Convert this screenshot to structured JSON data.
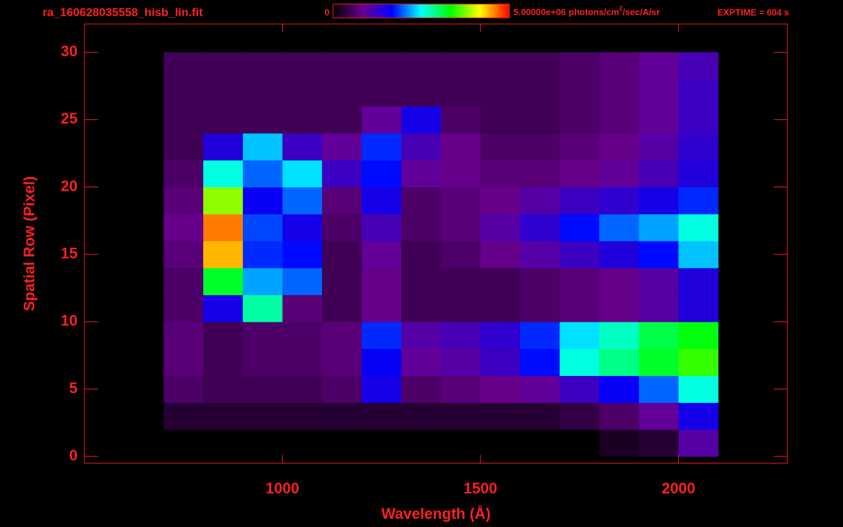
{
  "chart_data": {
    "type": "heatmap",
    "title": "ra_160628035558_hisb_lin.fit",
    "x_label": "Wavelength (Å)",
    "y_label": "Spatial Row (Pixel)",
    "annotation": "EXPTIME = 604 s",
    "colorbar": {
      "clim": [
        0,
        5000000
      ],
      "ticks": [
        0,
        {
          "value": 5000000,
          "label": "5.00000e+06"
        }
      ],
      "units": [
        "photons/cm",
        "2",
        "/sec/A/sr"
      ],
      "colormap": [
        "#000000",
        "#6a0090",
        "#0000ff",
        "#00ffff",
        "#00ff00",
        "#ffff00",
        "#ff0000"
      ]
    },
    "xlim": [
      500,
      2275
    ],
    "ylim": [
      -0.5,
      32.1
    ],
    "xticks": [
      1000,
      1500,
      2000
    ],
    "yticks": [
      0,
      5,
      10,
      15,
      20,
      25,
      30
    ],
    "axis_color": "#ff2020",
    "x_bins": [
      700,
      800,
      900,
      1000,
      1100,
      1200,
      1300,
      1400,
      1500,
      1600,
      1700,
      1800,
      1900,
      2000,
      2100
    ],
    "y_bins": [
      0,
      2,
      4,
      6,
      8,
      10,
      12,
      14,
      16,
      18,
      20,
      22,
      24,
      26,
      28,
      30
    ],
    "values": [
      [
        0,
        0,
        0,
        0,
        0,
        0,
        0,
        0,
        0,
        0,
        0,
        200000,
        300000,
        1000000
      ],
      [
        300000,
        300000,
        300000,
        300000,
        300000,
        300000,
        300000,
        300000,
        300000,
        300000,
        400000,
        600000,
        900000,
        1500000
      ],
      [
        600000,
        500000,
        500000,
        500000,
        600000,
        1500000,
        600000,
        700000,
        800000,
        900000,
        1200000,
        1600000,
        2000000,
        2600000
      ],
      [
        700000,
        500000,
        600000,
        600000,
        700000,
        1600000,
        900000,
        1000000,
        1200000,
        1700000,
        2600000,
        2900000,
        3200000,
        3500000
      ],
      [
        700000,
        500000,
        600000,
        600000,
        700000,
        1800000,
        1000000,
        1100000,
        1300000,
        1800000,
        2400000,
        2700000,
        3100000,
        3300000
      ],
      [
        600000,
        1500000,
        2800000,
        700000,
        500000,
        800000,
        500000,
        500000,
        500000,
        600000,
        700000,
        800000,
        1000000,
        1400000
      ],
      [
        600000,
        3200000,
        2200000,
        2000000,
        500000,
        800000,
        500000,
        500000,
        500000,
        600000,
        700000,
        800000,
        1000000,
        1400000
      ],
      [
        700000,
        4400000,
        1800000,
        1700000,
        500000,
        900000,
        500000,
        600000,
        800000,
        1000000,
        1200000,
        1400000,
        1700000,
        2300000
      ],
      [
        800000,
        4600000,
        1900000,
        1500000,
        600000,
        1100000,
        600000,
        700000,
        1000000,
        1300000,
        1700000,
        2000000,
        2200000,
        2600000
      ],
      [
        700000,
        3800000,
        1600000,
        2000000,
        700000,
        1500000,
        600000,
        700000,
        800000,
        1000000,
        1200000,
        1300000,
        1500000,
        1800000
      ],
      [
        600000,
        2600000,
        2000000,
        2400000,
        1200000,
        1700000,
        900000,
        800000,
        700000,
        700000,
        800000,
        900000,
        1100000,
        1400000
      ],
      [
        500000,
        1400000,
        2300000,
        1200000,
        900000,
        1800000,
        1100000,
        800000,
        600000,
        600000,
        700000,
        800000,
        1000000,
        1300000
      ],
      [
        500000,
        500000,
        500000,
        500000,
        500000,
        900000,
        1500000,
        600000,
        500000,
        500000,
        600000,
        700000,
        900000,
        1200000
      ],
      [
        500000,
        500000,
        500000,
        500000,
        500000,
        500000,
        500000,
        500000,
        500000,
        500000,
        600000,
        700000,
        900000,
        1200000
      ],
      [
        500000,
        500000,
        500000,
        500000,
        500000,
        500000,
        500000,
        500000,
        500000,
        500000,
        600000,
        700000,
        900000,
        1100000
      ]
    ]
  }
}
